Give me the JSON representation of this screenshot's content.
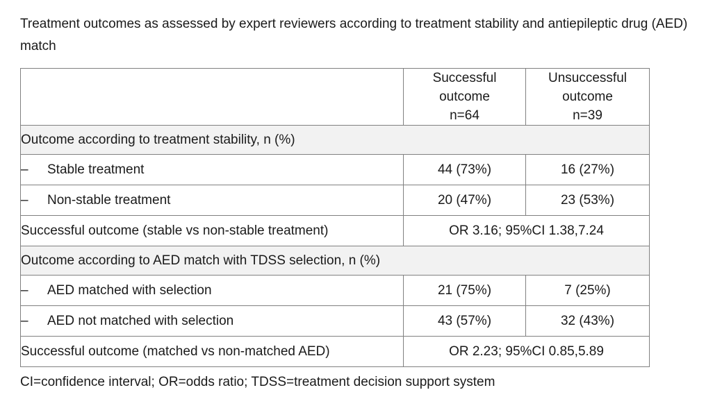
{
  "page": {
    "title": "Treatment outcomes as assessed by expert reviewers according to treatment stability and antiepileptic drug (AED) match",
    "footnote": "CI=confidence interval; OR=odds ratio; TDSS=treatment decision support system"
  },
  "colors": {
    "page_bg": "#ffffff",
    "text": "#1a1a1a",
    "table_border": "#808080",
    "section_row_bg": "#f2f2f2"
  },
  "table": {
    "header_row": {
      "empty": "",
      "successful": "Successful\noutcome\nn=64",
      "unsuccessful": "Unsuccessful\noutcome\nn=39"
    },
    "section1": {
      "header": "Outcome according to treatment stability, n (%)",
      "rows": [
        {
          "bullet": "–",
          "label": "Stable treatment",
          "successful": "44 (73%)",
          "unsuccessful": "16 (27%)"
        },
        {
          "bullet": "–",
          "label": "Non-stable treatment",
          "successful": "20 (47%)",
          "unsuccessful": "23 (53%)"
        }
      ],
      "summary": {
        "label": "Successful outcome (stable vs non-stable treatment)",
        "value": "OR 3.16; 95%CI 1.38,7.24"
      }
    },
    "section2": {
      "header": "Outcome according to AED match with TDSS selection, n (%)",
      "rows": [
        {
          "bullet": "–",
          "label": "AED matched with selection",
          "successful": "21 (75%)",
          "unsuccessful": "7 (25%)"
        },
        {
          "bullet": "–",
          "label": "AED not matched with selection",
          "successful": "43 (57%)",
          "unsuccessful": "32 (43%)"
        }
      ],
      "summary": {
        "label": "Successful outcome (matched vs non-matched AED)",
        "value": "OR 2.23; 95%CI 0.85,5.89"
      }
    }
  }
}
